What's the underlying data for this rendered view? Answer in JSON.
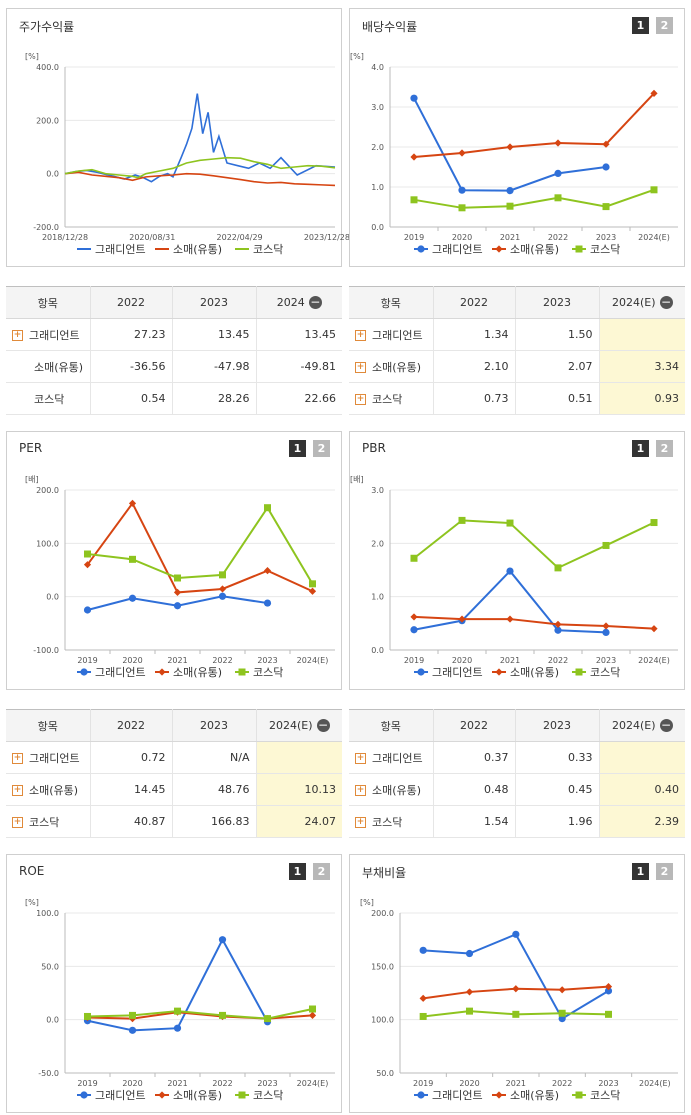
{
  "colors": {
    "s1": "#2f6fd8",
    "s2": "#d64512",
    "s3": "#8ec41f"
  },
  "legend": [
    "그래디언트",
    "소매(유통)",
    "코스닥"
  ],
  "pager": [
    "1",
    "2"
  ],
  "charts": {
    "stock": {
      "title": "주가수익률",
      "unit": "[%]",
      "yticks": [
        "400.0",
        "200.0",
        "0.0",
        "-200.0"
      ],
      "ymin": -200,
      "ymax": 400,
      "xticks": [
        "2018/12/28",
        "2020/08/31",
        "2022/04/29",
        "2023/12/28"
      ],
      "chart_data": {
        "type": "line",
        "x_dates": [
          "2018/12/28",
          "2020/08/31",
          "2022/04/29",
          "2023/12/28"
        ],
        "series": [
          {
            "name": "그래디언트",
            "values": [
              0,
              8,
              12,
              5,
              -10,
              -20,
              -5,
              -15,
              -30,
              -10,
              0,
              -12,
              60,
              110,
              170,
              300,
              150,
              230,
              80,
              140,
              40,
              30,
              20,
              40,
              20,
              60,
              -5,
              30,
              25
            ],
            "t": [
              0,
              0.04,
              0.08,
              0.12,
              0.18,
              0.22,
              0.26,
              0.29,
              0.32,
              0.35,
              0.38,
              0.4,
              0.43,
              0.45,
              0.47,
              0.49,
              0.51,
              0.53,
              0.55,
              0.57,
              0.6,
              0.64,
              0.68,
              0.72,
              0.76,
              0.8,
              0.86,
              0.93,
              1
            ]
          },
          {
            "name": "소매(유통)",
            "values": [
              0,
              5,
              -5,
              -10,
              -15,
              -25,
              -12,
              -8,
              -5,
              0,
              -2,
              -8,
              -15,
              -22,
              -30,
              -35,
              -33,
              -38,
              -40,
              -42,
              -44
            ],
            "t": [
              0,
              0.05,
              0.1,
              0.15,
              0.2,
              0.25,
              0.3,
              0.35,
              0.4,
              0.45,
              0.5,
              0.55,
              0.6,
              0.65,
              0.7,
              0.75,
              0.8,
              0.85,
              0.9,
              0.95,
              1
            ]
          },
          {
            "name": "코스닥",
            "values": [
              0,
              10,
              15,
              0,
              -5,
              -10,
              -15,
              0,
              10,
              20,
              40,
              50,
              55,
              60,
              58,
              45,
              35,
              20,
              25,
              30,
              28,
              22
            ],
            "t": [
              0,
              0.05,
              0.1,
              0.15,
              0.2,
              0.25,
              0.27,
              0.3,
              0.35,
              0.4,
              0.45,
              0.5,
              0.55,
              0.6,
              0.65,
              0.7,
              0.75,
              0.8,
              0.85,
              0.9,
              0.95,
              1
            ]
          }
        ]
      }
    },
    "div": {
      "title": "배당수익률",
      "unit": "[%]",
      "yticks": [
        "4.0",
        "3.0",
        "2.0",
        "1.0",
        "0.0"
      ],
      "ymin": 0,
      "ymax": 4,
      "xticks": [
        "2019",
        "2020",
        "2021",
        "2022",
        "2023",
        "2024(E)"
      ],
      "chart_data": {
        "type": "line",
        "categories": [
          "2019",
          "2020",
          "2021",
          "2022",
          "2023",
          "2024(E)"
        ],
        "series": [
          {
            "name": "그래디언트",
            "values": [
              3.22,
              0.92,
              0.91,
              1.34,
              1.5,
              null
            ]
          },
          {
            "name": "소매(유통)",
            "values": [
              1.75,
              1.85,
              2.0,
              2.1,
              2.07,
              3.34
            ]
          },
          {
            "name": "코스닥",
            "values": [
              0.68,
              0.48,
              0.52,
              0.73,
              0.51,
              0.93
            ]
          }
        ]
      }
    },
    "per": {
      "title": "PER",
      "unit": "[배]",
      "yticks": [
        "200.0",
        "100.0",
        "0.0",
        "-100.0"
      ],
      "ymin": -100,
      "ymax": 200,
      "xticks": [
        "2019",
        "2020",
        "2021",
        "2022",
        "2023",
        "2024(E)"
      ],
      "chart_data": {
        "type": "line",
        "categories": [
          "2019",
          "2020",
          "2021",
          "2022",
          "2023",
          "2024(E)"
        ],
        "series": [
          {
            "name": "그래디언트",
            "values": [
              -25,
              -3,
              -17,
              0.72,
              -12,
              null
            ]
          },
          {
            "name": "소매(유통)",
            "values": [
              60,
              175,
              8,
              14.45,
              48.76,
              10.13
            ]
          },
          {
            "name": "코스닥",
            "values": [
              80,
              70,
              35,
              40.87,
              166.83,
              24.07
            ]
          }
        ]
      }
    },
    "pbr": {
      "title": "PBR",
      "unit": "[배]",
      "yticks": [
        "3.0",
        "2.0",
        "1.0",
        "0.0"
      ],
      "ymin": 0,
      "ymax": 3,
      "xticks": [
        "2019",
        "2020",
        "2021",
        "2022",
        "2023",
        "2024(E)"
      ],
      "chart_data": {
        "type": "line",
        "categories": [
          "2019",
          "2020",
          "2021",
          "2022",
          "2023",
          "2024(E)"
        ],
        "series": [
          {
            "name": "그래디언트",
            "values": [
              0.38,
              0.55,
              1.48,
              0.37,
              0.33,
              null
            ]
          },
          {
            "name": "소매(유통)",
            "values": [
              0.62,
              0.58,
              0.58,
              0.48,
              0.45,
              0.4
            ]
          },
          {
            "name": "코스닥",
            "values": [
              1.72,
              2.43,
              2.38,
              1.54,
              1.96,
              2.39
            ]
          }
        ]
      }
    },
    "roe": {
      "title": "ROE",
      "unit": "[%]",
      "yticks": [
        "100.0",
        "50.0",
        "0.0",
        "-50.0"
      ],
      "ymin": -50,
      "ymax": 100,
      "xticks": [
        "2019",
        "2020",
        "2021",
        "2022",
        "2023",
        "2024(E)"
      ],
      "chart_data": {
        "type": "line",
        "categories": [
          "2019",
          "2020",
          "2021",
          "2022",
          "2023",
          "2024(E)"
        ],
        "series": [
          {
            "name": "그래디언트",
            "values": [
              -1,
              -10,
              -8,
              75,
              -2,
              null
            ]
          },
          {
            "name": "소매(유통)",
            "values": [
              2,
              1,
              7,
              3,
              1,
              4
            ]
          },
          {
            "name": "코스닥",
            "values": [
              3,
              4,
              8,
              4,
              1,
              10
            ]
          }
        ]
      }
    },
    "debt": {
      "title": "부채비율",
      "unit": "[%]",
      "yticks": [
        "200.0",
        "150.0",
        "100.0",
        "50.0"
      ],
      "ymin": 50,
      "ymax": 200,
      "xticks": [
        "2019",
        "2020",
        "2021",
        "2022",
        "2023",
        "2024(E)"
      ],
      "chart_data": {
        "type": "line",
        "categories": [
          "2019",
          "2020",
          "2021",
          "2022",
          "2023",
          "2024(E)"
        ],
        "series": [
          {
            "name": "그래디언트",
            "values": [
              165,
              162,
              180,
              101,
              127,
              null
            ]
          },
          {
            "name": "소매(유통)",
            "values": [
              120,
              126,
              129,
              128,
              131,
              null
            ]
          },
          {
            "name": "코스닥",
            "values": [
              103,
              108,
              105,
              106,
              105,
              null
            ]
          }
        ]
      }
    }
  },
  "tables": {
    "stock": {
      "header": [
        "항목",
        "2022",
        "2023",
        "2024"
      ],
      "rows": [
        [
          "그래디언트",
          "27.23",
          "13.45",
          "13.45"
        ],
        [
          "소매(유통)",
          "-36.56",
          "-47.98",
          "-49.81"
        ],
        [
          "코스닥",
          "0.54",
          "28.26",
          "22.66"
        ]
      ]
    },
    "div": {
      "header": [
        "항목",
        "2022",
        "2023",
        "2024(E)"
      ],
      "rows": [
        [
          "그래디언트",
          "1.34",
          "1.50",
          ""
        ],
        [
          "소매(유통)",
          "2.10",
          "2.07",
          "3.34"
        ],
        [
          "코스닥",
          "0.73",
          "0.51",
          "0.93"
        ]
      ]
    },
    "per": {
      "header": [
        "항목",
        "2022",
        "2023",
        "2024(E)"
      ],
      "rows": [
        [
          "그래디언트",
          "0.72",
          "N/A",
          ""
        ],
        [
          "소매(유통)",
          "14.45",
          "48.76",
          "10.13"
        ],
        [
          "코스닥",
          "40.87",
          "166.83",
          "24.07"
        ]
      ]
    },
    "pbr": {
      "header": [
        "항목",
        "2022",
        "2023",
        "2024(E)"
      ],
      "rows": [
        [
          "그래디언트",
          "0.37",
          "0.33",
          ""
        ],
        [
          "소매(유통)",
          "0.48",
          "0.45",
          "0.40"
        ],
        [
          "코스닥",
          "1.54",
          "1.96",
          "2.39"
        ]
      ]
    }
  }
}
